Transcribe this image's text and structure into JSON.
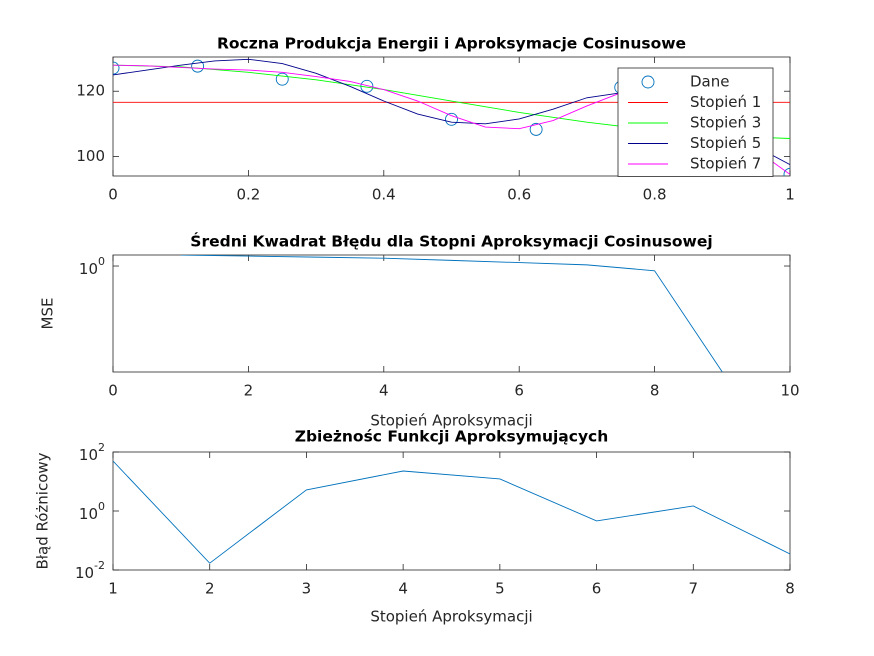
{
  "chart_data": [
    {
      "type": "line",
      "title": "Roczna Produkcja Energii i Aproksymacje Cosinusowe",
      "xlim": [
        0,
        1
      ],
      "xticks": [
        0,
        0.2,
        0.4,
        0.6,
        0.8,
        1
      ],
      "ylim": [
        94,
        130.5
      ],
      "yticks": [
        100,
        120
      ],
      "legend": "northeast",
      "series": [
        {
          "name": "Dane",
          "color": "#0072bd",
          "marker": "circle",
          "line": false,
          "x": [
            0,
            0.125,
            0.25,
            0.375,
            0.5,
            0.625,
            0.75,
            0.875,
            1
          ],
          "values": [
            127.1,
            127.7,
            123.7,
            121.5,
            111.4,
            108.3,
            121.2,
            114,
            94.5
          ]
        },
        {
          "name": "Stopień 1",
          "color": "#ff0000",
          "x": [
            0,
            1
          ],
          "values": [
            116.6,
            116.6
          ]
        },
        {
          "name": "Stopień 3",
          "color": "#00ff00",
          "x": [
            0,
            0.1,
            0.2,
            0.3,
            0.4,
            0.5,
            0.6,
            0.7,
            0.8,
            0.9,
            1
          ],
          "values": [
            128,
            127.5,
            125.8,
            123.5,
            120.5,
            117,
            113.5,
            110.5,
            108,
            106.3,
            105.5
          ]
        },
        {
          "name": "Stopień 5",
          "color": "#00008b",
          "x": [
            0,
            0.05,
            0.1,
            0.15,
            0.2,
            0.25,
            0.3,
            0.35,
            0.4,
            0.45,
            0.5,
            0.55,
            0.6,
            0.65,
            0.7,
            0.75,
            0.8,
            0.85,
            0.9,
            0.95,
            1
          ],
          "values": [
            125,
            126.5,
            128,
            129.3,
            129.8,
            128.5,
            125.5,
            121.5,
            117,
            113,
            110.5,
            110,
            111.5,
            114.5,
            118,
            119.5,
            118.5,
            115,
            109,
            103,
            97.5
          ]
        },
        {
          "name": "Stopień 7",
          "color": "#ff00ff",
          "x": [
            0,
            0.05,
            0.1,
            0.15,
            0.2,
            0.25,
            0.3,
            0.35,
            0.4,
            0.45,
            0.5,
            0.55,
            0.6,
            0.65,
            0.7,
            0.75,
            0.8,
            0.85,
            0.9,
            0.95,
            1
          ],
          "values": [
            128,
            127.8,
            127.3,
            126.8,
            126.5,
            125.8,
            124.5,
            123,
            120.5,
            117,
            112.5,
            109,
            108.5,
            111,
            115.5,
            119.5,
            121,
            118,
            111,
            102,
            94.5
          ]
        }
      ]
    },
    {
      "type": "line",
      "title": "Średni Kwadrat Błędu dla Stopni Aproksymacji Cosinusowej",
      "x_label": "Stopień Aproksymacji",
      "y_label": "MSE",
      "yscale": "log",
      "xlim": [
        0,
        10
      ],
      "xticks": [
        0,
        2,
        4,
        6,
        8,
        10
      ],
      "ylim": [
        0.4,
        1.1
      ],
      "yticks": [
        {
          "value": 1,
          "label": "10^0"
        }
      ],
      "x": [
        1,
        2,
        3,
        4,
        5,
        6,
        7,
        8,
        9
      ],
      "series": [
        {
          "color": "#0072bd",
          "values": [
            1.1,
            1.09,
            1.08,
            1.07,
            1.05,
            1.03,
            1.01,
            0.96,
            0.4
          ]
        }
      ]
    },
    {
      "type": "line",
      "title": "Zbieżnośc Funkcji Aproksymujących",
      "x_label": "Stopień Aproksymacji",
      "y_label": "Błąd Różnicowy",
      "yscale": "log",
      "xlim": [
        1,
        8
      ],
      "xticks": [
        1,
        2,
        3,
        4,
        5,
        6,
        7,
        8
      ],
      "ylim": [
        0.01,
        100
      ],
      "yticks": [
        {
          "value": 0.01,
          "label": "10^-2"
        },
        {
          "value": 1,
          "label": "10^0"
        },
        {
          "value": 100,
          "label": "10^2"
        }
      ],
      "x": [
        1,
        2,
        3,
        4,
        5,
        6,
        7,
        8
      ],
      "series": [
        {
          "color": "#0072bd",
          "values": [
            49.5,
            0.017,
            5.2,
            22.7,
            12.2,
            0.46,
            1.48,
            0.035
          ]
        }
      ]
    }
  ]
}
